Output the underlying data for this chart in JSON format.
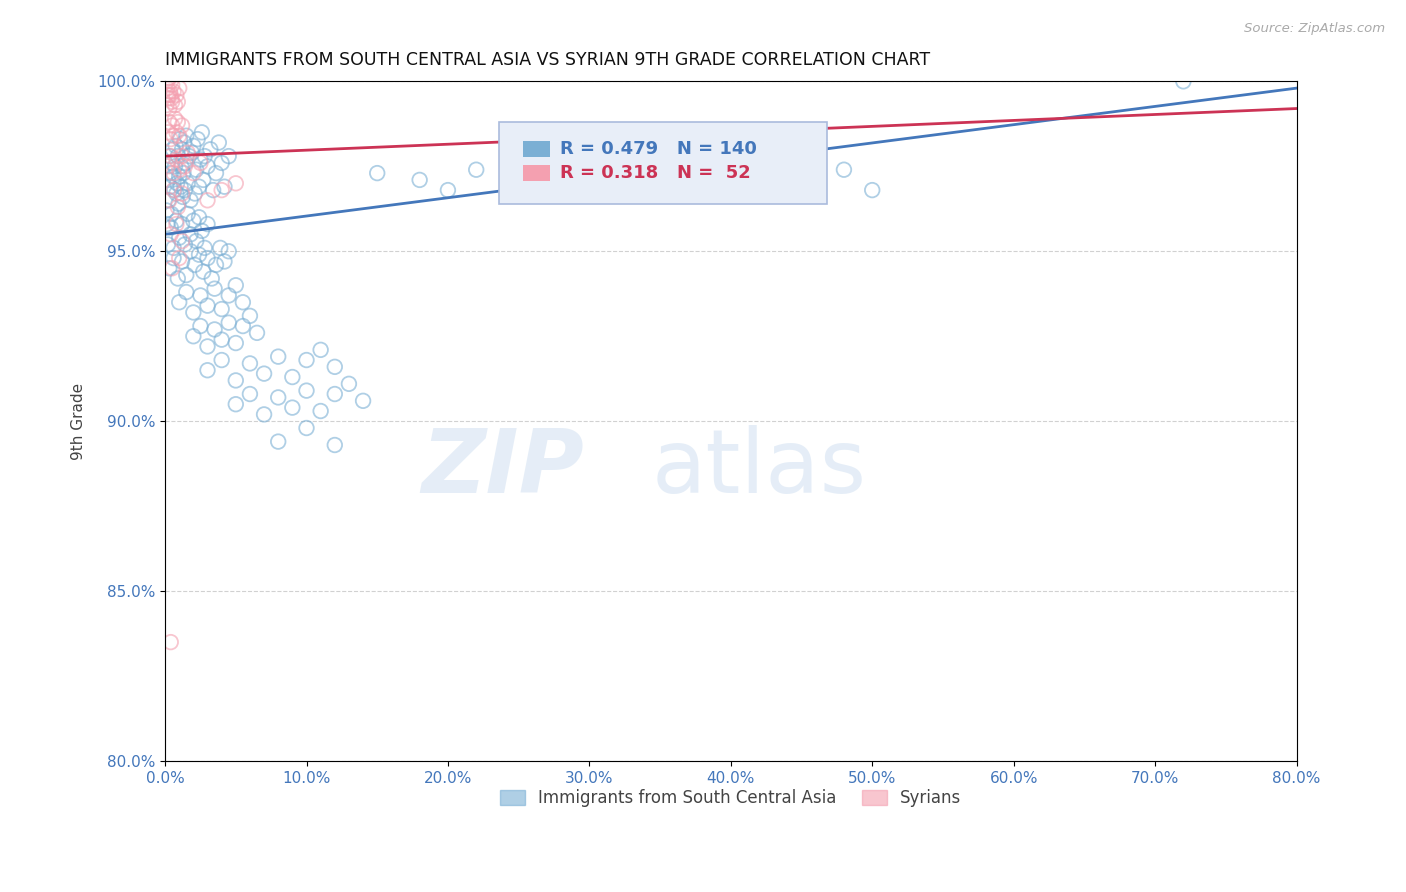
{
  "title": "IMMIGRANTS FROM SOUTH CENTRAL ASIA VS SYRIAN 9TH GRADE CORRELATION CHART",
  "source": "Source: ZipAtlas.com",
  "ylabel": "9th Grade",
  "xlim": [
    0.0,
    80.0
  ],
  "ylim": [
    80.0,
    100.0
  ],
  "xticks": [
    0.0,
    10.0,
    20.0,
    30.0,
    40.0,
    50.0,
    60.0,
    70.0,
    80.0
  ],
  "yticks": [
    80.0,
    85.0,
    90.0,
    95.0,
    100.0
  ],
  "blue_color": "#7BAFD4",
  "pink_color": "#F4A0B0",
  "blue_line_color": "#4477BB",
  "pink_line_color": "#CC3355",
  "legend_blue_r": 0.479,
  "legend_blue_n": 140,
  "legend_pink_r": 0.318,
  "legend_pink_n": 52,
  "legend_label_blue": "Immigrants from South Central Asia",
  "legend_label_pink": "Syrians",
  "watermark_zip": "ZIP",
  "watermark_atlas": "atlas",
  "blue_scatter": [
    [
      0.1,
      96.2
    ],
    [
      0.15,
      95.8
    ],
    [
      0.2,
      97.1
    ],
    [
      0.25,
      96.5
    ],
    [
      0.3,
      97.8
    ],
    [
      0.35,
      96.9
    ],
    [
      0.4,
      97.3
    ],
    [
      0.45,
      96.1
    ],
    [
      0.5,
      97.6
    ],
    [
      0.55,
      98.0
    ],
    [
      0.6,
      97.2
    ],
    [
      0.65,
      96.8
    ],
    [
      0.7,
      97.5
    ],
    [
      0.75,
      98.1
    ],
    [
      0.8,
      96.7
    ],
    [
      0.85,
      97.0
    ],
    [
      0.9,
      97.8
    ],
    [
      0.95,
      96.4
    ],
    [
      1.0,
      97.2
    ],
    [
      1.05,
      98.3
    ],
    [
      1.1,
      96.9
    ],
    [
      1.15,
      97.5
    ],
    [
      1.2,
      98.0
    ],
    [
      1.25,
      96.6
    ],
    [
      1.3,
      97.3
    ],
    [
      1.35,
      98.2
    ],
    [
      1.4,
      96.8
    ],
    [
      1.45,
      97.6
    ],
    [
      1.5,
      98.4
    ],
    [
      1.6,
      97.0
    ],
    [
      1.7,
      97.8
    ],
    [
      1.8,
      96.5
    ],
    [
      1.9,
      97.9
    ],
    [
      2.0,
      98.1
    ],
    [
      2.1,
      96.7
    ],
    [
      2.2,
      97.4
    ],
    [
      2.3,
      98.3
    ],
    [
      2.4,
      96.9
    ],
    [
      2.5,
      97.7
    ],
    [
      2.6,
      98.5
    ],
    [
      2.7,
      97.1
    ],
    [
      2.8,
      97.8
    ],
    [
      3.0,
      97.5
    ],
    [
      3.2,
      98.0
    ],
    [
      3.4,
      96.8
    ],
    [
      3.6,
      97.3
    ],
    [
      3.8,
      98.2
    ],
    [
      4.0,
      97.6
    ],
    [
      4.2,
      96.9
    ],
    [
      4.5,
      97.8
    ],
    [
      0.2,
      95.2
    ],
    [
      0.4,
      95.7
    ],
    [
      0.6,
      95.1
    ],
    [
      0.8,
      95.9
    ],
    [
      1.0,
      95.4
    ],
    [
      1.2,
      95.8
    ],
    [
      1.4,
      95.2
    ],
    [
      1.6,
      96.1
    ],
    [
      1.8,
      95.5
    ],
    [
      2.0,
      95.9
    ],
    [
      2.2,
      95.3
    ],
    [
      2.4,
      96.0
    ],
    [
      2.6,
      95.6
    ],
    [
      2.8,
      95.1
    ],
    [
      3.0,
      95.8
    ],
    [
      0.3,
      94.5
    ],
    [
      0.6,
      94.8
    ],
    [
      0.9,
      94.2
    ],
    [
      1.2,
      94.7
    ],
    [
      1.5,
      94.3
    ],
    [
      1.8,
      95.0
    ],
    [
      2.1,
      94.6
    ],
    [
      2.4,
      94.9
    ],
    [
      2.7,
      94.4
    ],
    [
      3.0,
      94.8
    ],
    [
      3.3,
      94.2
    ],
    [
      3.6,
      94.6
    ],
    [
      3.9,
      95.1
    ],
    [
      4.2,
      94.7
    ],
    [
      4.5,
      95.0
    ],
    [
      1.0,
      93.5
    ],
    [
      1.5,
      93.8
    ],
    [
      2.0,
      93.2
    ],
    [
      2.5,
      93.7
    ],
    [
      3.0,
      93.4
    ],
    [
      3.5,
      93.9
    ],
    [
      4.0,
      93.3
    ],
    [
      4.5,
      93.7
    ],
    [
      5.0,
      94.0
    ],
    [
      5.5,
      93.5
    ],
    [
      2.0,
      92.5
    ],
    [
      2.5,
      92.8
    ],
    [
      3.0,
      92.2
    ],
    [
      3.5,
      92.7
    ],
    [
      4.0,
      92.4
    ],
    [
      4.5,
      92.9
    ],
    [
      5.0,
      92.3
    ],
    [
      5.5,
      92.8
    ],
    [
      6.0,
      93.1
    ],
    [
      6.5,
      92.6
    ],
    [
      3.0,
      91.5
    ],
    [
      4.0,
      91.8
    ],
    [
      5.0,
      91.2
    ],
    [
      6.0,
      91.7
    ],
    [
      7.0,
      91.4
    ],
    [
      8.0,
      91.9
    ],
    [
      9.0,
      91.3
    ],
    [
      10.0,
      91.8
    ],
    [
      11.0,
      92.1
    ],
    [
      12.0,
      91.6
    ],
    [
      5.0,
      90.5
    ],
    [
      6.0,
      90.8
    ],
    [
      7.0,
      90.2
    ],
    [
      8.0,
      90.7
    ],
    [
      9.0,
      90.4
    ],
    [
      10.0,
      90.9
    ],
    [
      11.0,
      90.3
    ],
    [
      12.0,
      90.8
    ],
    [
      13.0,
      91.1
    ],
    [
      14.0,
      90.6
    ],
    [
      8.0,
      89.4
    ],
    [
      10.0,
      89.8
    ],
    [
      12.0,
      89.3
    ],
    [
      15.0,
      97.3
    ],
    [
      18.0,
      97.1
    ],
    [
      20.0,
      96.8
    ],
    [
      22.0,
      97.4
    ],
    [
      25.0,
      97.0
    ],
    [
      28.0,
      97.5
    ],
    [
      30.0,
      97.2
    ],
    [
      35.0,
      97.0
    ],
    [
      38.0,
      97.3
    ],
    [
      40.0,
      97.6
    ],
    [
      45.0,
      97.1
    ],
    [
      48.0,
      97.4
    ],
    [
      50.0,
      96.8
    ],
    [
      72.0,
      100.0
    ]
  ],
  "pink_scatter": [
    [
      0.1,
      100.0
    ],
    [
      0.15,
      99.8
    ],
    [
      0.2,
      100.2
    ],
    [
      0.25,
      99.6
    ],
    [
      0.3,
      100.1
    ],
    [
      0.35,
      99.7
    ],
    [
      0.4,
      100.0
    ],
    [
      0.45,
      99.5
    ],
    [
      0.5,
      99.9
    ],
    [
      0.1,
      99.3
    ],
    [
      0.2,
      99.5
    ],
    [
      0.3,
      99.2
    ],
    [
      0.4,
      99.6
    ],
    [
      0.5,
      99.4
    ],
    [
      0.6,
      99.7
    ],
    [
      0.7,
      99.3
    ],
    [
      0.8,
      99.6
    ],
    [
      0.9,
      99.4
    ],
    [
      1.0,
      99.8
    ],
    [
      0.2,
      98.5
    ],
    [
      0.3,
      98.8
    ],
    [
      0.4,
      98.3
    ],
    [
      0.5,
      98.7
    ],
    [
      0.6,
      98.4
    ],
    [
      0.7,
      98.9
    ],
    [
      0.8,
      98.5
    ],
    [
      0.9,
      98.8
    ],
    [
      1.0,
      98.4
    ],
    [
      1.2,
      98.7
    ],
    [
      0.2,
      97.5
    ],
    [
      0.4,
      97.8
    ],
    [
      0.6,
      97.3
    ],
    [
      0.8,
      97.7
    ],
    [
      1.0,
      97.4
    ],
    [
      1.2,
      97.8
    ],
    [
      1.4,
      97.5
    ],
    [
      1.6,
      97.9
    ],
    [
      2.0,
      97.3
    ],
    [
      2.5,
      97.6
    ],
    [
      0.3,
      96.5
    ],
    [
      0.6,
      96.8
    ],
    [
      0.9,
      96.3
    ],
    [
      1.2,
      96.7
    ],
    [
      0.4,
      95.5
    ],
    [
      0.8,
      95.8
    ],
    [
      1.2,
      95.3
    ],
    [
      0.5,
      94.5
    ],
    [
      1.0,
      94.8
    ],
    [
      3.0,
      96.5
    ],
    [
      4.0,
      96.8
    ],
    [
      5.0,
      97.0
    ],
    [
      0.4,
      83.5
    ]
  ],
  "blue_trendline_x": [
    0.0,
    80.0
  ],
  "blue_trendline_y": [
    95.5,
    99.8
  ],
  "pink_trendline_x": [
    0.0,
    80.0
  ],
  "pink_trendline_y": [
    97.8,
    99.2
  ]
}
